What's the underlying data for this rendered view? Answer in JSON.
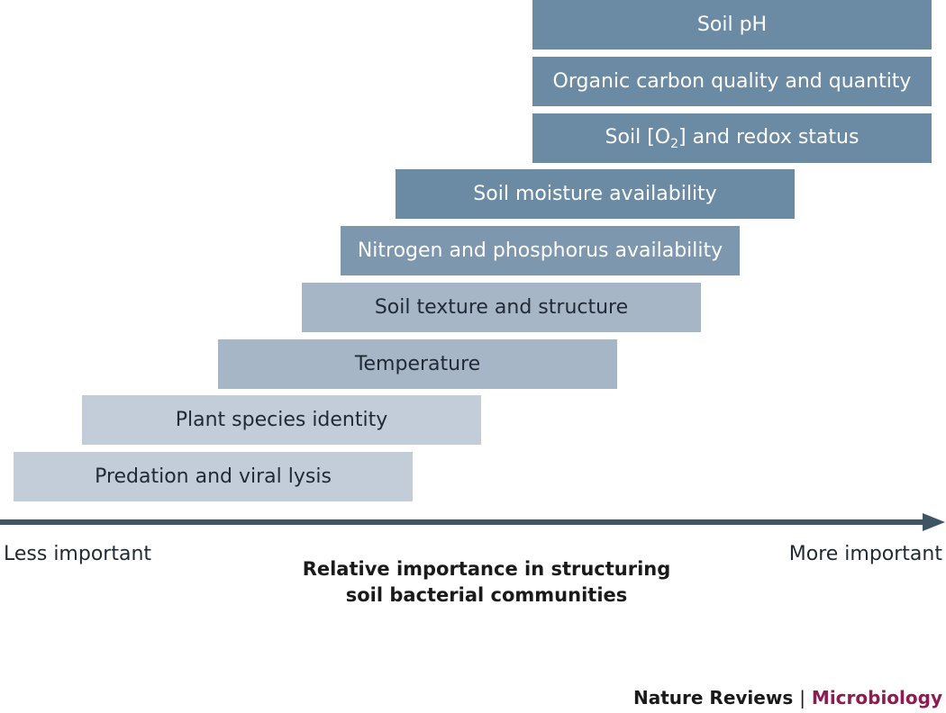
{
  "factors": [
    {
      "label": "Soil pH"
    },
    {
      "label": "Organic carbon quality and quantity"
    },
    {
      "label_pre": "Soil [O",
      "label_sub": "2",
      "label_post": "] and redox status"
    },
    {
      "label": "Soil moisture availability"
    },
    {
      "label": "Nitrogen and phosphorus availability"
    },
    {
      "label": "Soil texture and structure"
    },
    {
      "label": "Temperature"
    },
    {
      "label": "Plant species identity"
    },
    {
      "label": "Predation and viral lysis"
    }
  ],
  "axis": {
    "left_label": "Less important",
    "right_label": "More important",
    "title_line1": "Relative importance in structuring",
    "title_line2": "soil bacterial communities",
    "color": "#3e5566"
  },
  "credit": {
    "publisher": "Nature Reviews",
    "separator": "|",
    "journal": "Microbiology"
  },
  "colors": {
    "dark_bar": "#6b8aa3",
    "mid_bar": "#7c97ae",
    "light_bar": "#a7b6c6",
    "lightest_bar": "#c3cdd9",
    "journal_accent": "#8e1b52"
  }
}
